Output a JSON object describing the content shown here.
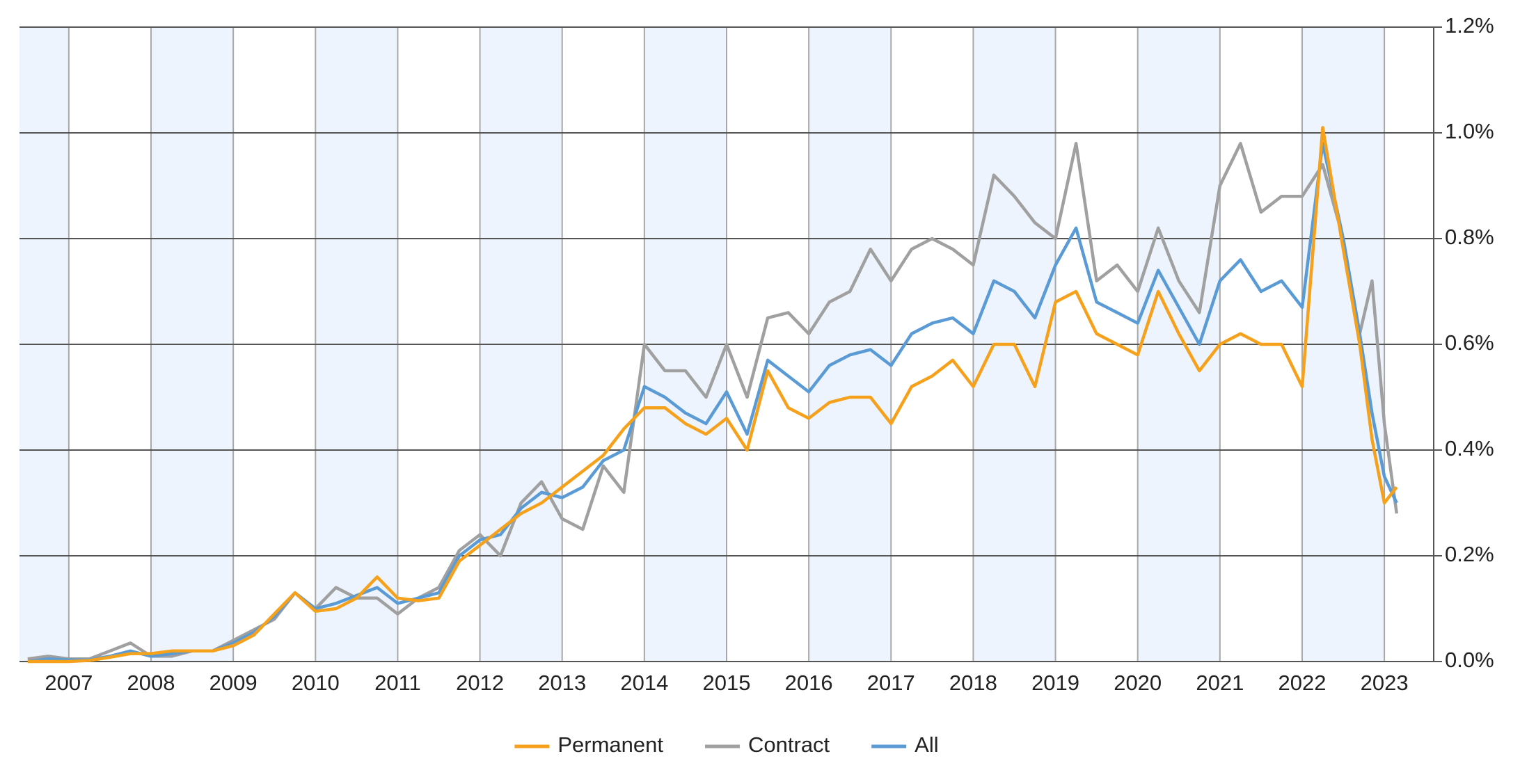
{
  "chart_data": {
    "type": "line",
    "x": [
      2006.5,
      2006.75,
      2007,
      2007.25,
      2007.5,
      2007.75,
      2008,
      2008.25,
      2008.5,
      2008.75,
      2009,
      2009.25,
      2009.5,
      2009.75,
      2010,
      2010.25,
      2010.5,
      2010.75,
      2011,
      2011.25,
      2011.5,
      2011.75,
      2012,
      2012.25,
      2012.5,
      2012.75,
      2013,
      2013.25,
      2013.5,
      2013.75,
      2014,
      2014.25,
      2014.5,
      2014.75,
      2015,
      2015.25,
      2015.5,
      2015.75,
      2016,
      2016.25,
      2016.5,
      2016.75,
      2017,
      2017.25,
      2017.5,
      2017.75,
      2018,
      2018.25,
      2018.5,
      2018.75,
      2019,
      2019.25,
      2019.5,
      2019.75,
      2020,
      2020.25,
      2020.5,
      2020.75,
      2021,
      2021.25,
      2021.5,
      2021.75,
      2022,
      2022.25,
      2022.5,
      2022.7,
      2022.85,
      2023,
      2023.15
    ],
    "series": [
      {
        "name": "Permanent",
        "color": "#f5a11c",
        "values": [
          0,
          0,
          0,
          0.002,
          0.008,
          0.015,
          0.015,
          0.02,
          0.02,
          0.02,
          0.03,
          0.05,
          0.09,
          0.13,
          0.095,
          0.1,
          0.12,
          0.16,
          0.12,
          0.115,
          0.12,
          0.19,
          0.22,
          0.25,
          0.28,
          0.3,
          0.33,
          0.36,
          0.39,
          0.44,
          0.48,
          0.48,
          0.45,
          0.43,
          0.46,
          0.4,
          0.55,
          0.48,
          0.46,
          0.49,
          0.5,
          0.5,
          0.45,
          0.52,
          0.54,
          0.57,
          0.52,
          0.6,
          0.6,
          0.52,
          0.68,
          0.7,
          0.62,
          0.6,
          0.58,
          0.7,
          0.62,
          0.55,
          0.6,
          0.62,
          0.6,
          0.6,
          0.52,
          1.01,
          0.78,
          0.6,
          0.42,
          0.3,
          0.33
        ]
      },
      {
        "name": "Contract",
        "color": "#a0a0a0",
        "values": [
          0.005,
          0.01,
          0.005,
          0.005,
          0.02,
          0.035,
          0.01,
          0.01,
          0.02,
          0.02,
          0.04,
          0.06,
          0.08,
          0.13,
          0.1,
          0.14,
          0.12,
          0.12,
          0.09,
          0.12,
          0.14,
          0.21,
          0.24,
          0.2,
          0.3,
          0.34,
          0.27,
          0.25,
          0.37,
          0.32,
          0.6,
          0.55,
          0.55,
          0.5,
          0.6,
          0.5,
          0.65,
          0.66,
          0.62,
          0.68,
          0.7,
          0.78,
          0.72,
          0.78,
          0.8,
          0.78,
          0.75,
          0.92,
          0.88,
          0.83,
          0.8,
          0.98,
          0.72,
          0.75,
          0.7,
          0.82,
          0.72,
          0.66,
          0.9,
          0.98,
          0.85,
          0.88,
          0.88,
          0.94,
          0.8,
          0.62,
          0.72,
          0.45,
          0.28
        ]
      },
      {
        "name": "All",
        "color": "#5b9bd5",
        "values": [
          0,
          0.005,
          0.003,
          0.003,
          0.01,
          0.02,
          0.01,
          0.015,
          0.02,
          0.02,
          0.035,
          0.055,
          0.085,
          0.13,
          0.1,
          0.11,
          0.125,
          0.14,
          0.11,
          0.12,
          0.13,
          0.2,
          0.23,
          0.24,
          0.29,
          0.32,
          0.31,
          0.33,
          0.38,
          0.4,
          0.52,
          0.5,
          0.47,
          0.45,
          0.51,
          0.43,
          0.57,
          0.54,
          0.51,
          0.56,
          0.58,
          0.59,
          0.56,
          0.62,
          0.64,
          0.65,
          0.62,
          0.72,
          0.7,
          0.65,
          0.75,
          0.82,
          0.68,
          0.66,
          0.64,
          0.74,
          0.67,
          0.6,
          0.72,
          0.76,
          0.7,
          0.72,
          0.67,
          0.98,
          0.8,
          0.62,
          0.47,
          0.35,
          0.3
        ]
      }
    ],
    "xlim": [
      2006.4,
      2023.6
    ],
    "xticks": [
      2007,
      2008,
      2009,
      2010,
      2011,
      2012,
      2013,
      2014,
      2015,
      2016,
      2017,
      2018,
      2019,
      2020,
      2021,
      2022,
      2023
    ],
    "ylim": [
      0,
      1.2
    ],
    "yticks": [
      {
        "value": 0,
        "label": "0.0%"
      },
      {
        "value": 0.2,
        "label": "0.2%"
      },
      {
        "value": 0.4,
        "label": "0.4%"
      },
      {
        "value": 0.6,
        "label": "0.6%"
      },
      {
        "value": 0.8,
        "label": "0.8%"
      },
      {
        "value": 1.0,
        "label": "1.0%"
      },
      {
        "value": 1.2,
        "label": "1.2%"
      }
    ],
    "grid": true,
    "legend": "bottom"
  }
}
